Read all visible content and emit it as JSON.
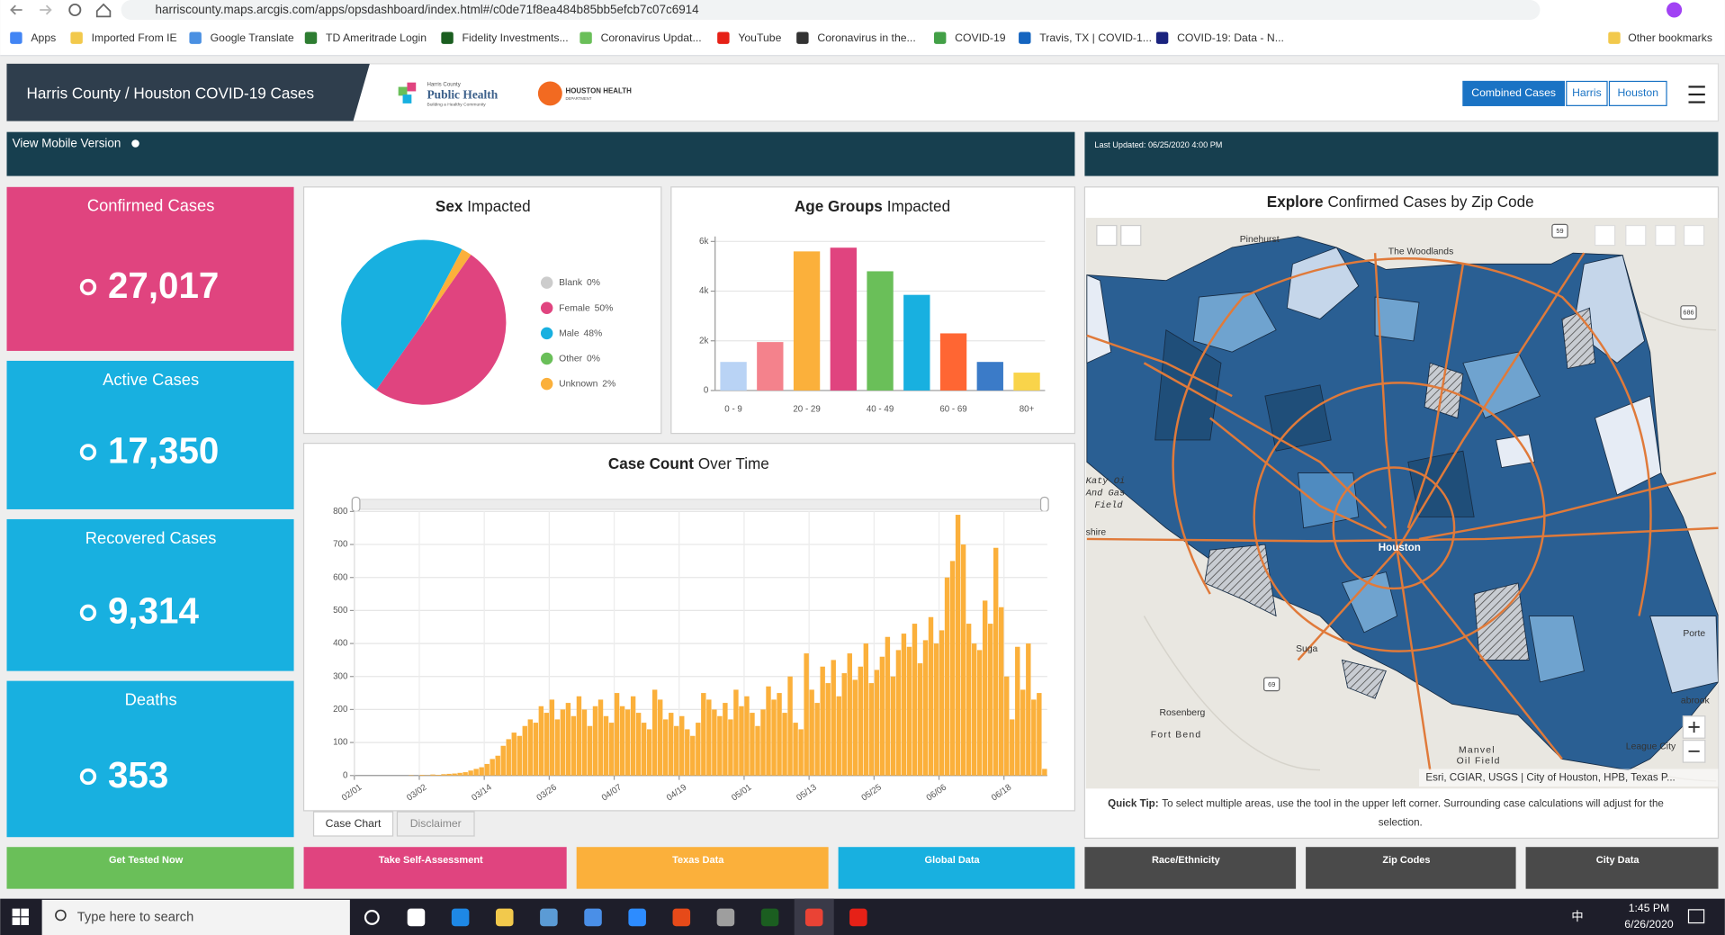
{
  "browser": {
    "url": "harriscounty.maps.arcgis.com/apps/opsdashboard/index.html#/c0de71f8ea484b85bb5efcb7c07c6914",
    "bookmarks": [
      "Apps",
      "Imported From IE",
      "Google Translate",
      "TD Ameritrade Login",
      "Fidelity Investments...",
      "Coronavirus Updat...",
      "YouTube",
      "Coronavirus in the...",
      "COVID-19",
      "Travis, TX | COVID-1...",
      "COVID-19: Data - N..."
    ],
    "other_bookmarks": "Other bookmarks"
  },
  "header": {
    "title": "Harris County / Houston COVID-19 Cases",
    "logo1_small": "Harris County",
    "logo1": "Public Health",
    "logo1_tag": "Building a Healthy Community",
    "logo2": "HOUSTON HEALTH",
    "logo2_tag": "DEPARTMENT",
    "tabs": [
      "Combined Cases",
      "Harris",
      "Houston"
    ]
  },
  "banner": {
    "mobile": "View Mobile Version",
    "updated": "Last Updated:  06/25/2020 4:00 PM"
  },
  "kpis": [
    {
      "label": "Confirmed Cases",
      "value": "27,017"
    },
    {
      "label": "Active Cases",
      "value": "17,350"
    },
    {
      "label": "Recovered Cases",
      "value": "9,314"
    },
    {
      "label": "Deaths",
      "value": "353"
    }
  ],
  "chart_data": [
    {
      "type": "pie",
      "title": [
        "Sex",
        "Impacted"
      ],
      "categories": [
        "Blank",
        "Female",
        "Male",
        "Other",
        "Unknown"
      ],
      "values": [
        0,
        50,
        48,
        0,
        2
      ],
      "value_labels": [
        "0%",
        "50%",
        "48%",
        "0%",
        "2%"
      ],
      "colors": [
        "#cccccc",
        "#e0447f",
        "#18b0e0",
        "#6abf59",
        "#fbb03b"
      ],
      "legend": "right"
    },
    {
      "type": "bar",
      "title": [
        "Age Groups",
        "Impacted"
      ],
      "categories": [
        "0 - 9",
        null,
        "20 - 29",
        null,
        "40 - 49",
        null,
        "60 - 69",
        null,
        "80+"
      ],
      "values": [
        1150,
        1950,
        5600,
        5750,
        4800,
        3850,
        2300,
        1150,
        720
      ],
      "colors": [
        "#b9d3f5",
        "#f4828c",
        "#fbb03b",
        "#e0447f",
        "#6abf59",
        "#18b0e0",
        "#ff6633",
        "#3b7bc8",
        "#f9d44a"
      ],
      "ylim": [
        0,
        6200
      ],
      "yticks": [
        0,
        {
          "value": 2000,
          "label": "2k"
        },
        {
          "value": 4000,
          "label": "4k"
        },
        {
          "value": 6000,
          "label": "6k"
        }
      ],
      "grid": true
    },
    {
      "type": "bar",
      "title": [
        "Case Count",
        "Over Time"
      ],
      "values": [
        0,
        0,
        0,
        0,
        0,
        0,
        0,
        0,
        0,
        0,
        1,
        0,
        2,
        1,
        3,
        2,
        4,
        5,
        6,
        8,
        10,
        15,
        20,
        25,
        35,
        50,
        60,
        90,
        110,
        130,
        120,
        150,
        170,
        160,
        210,
        190,
        230,
        170,
        200,
        220,
        180,
        240,
        200,
        150,
        210,
        230,
        180,
        160,
        250,
        210,
        200,
        240,
        190,
        160,
        140,
        260,
        230,
        170,
        190,
        150,
        180,
        140,
        120,
        160,
        250,
        230,
        200,
        180,
        220,
        170,
        260,
        210,
        240,
        190,
        150,
        200,
        270,
        230,
        250,
        190,
        300,
        160,
        140,
        370,
        260,
        220,
        330,
        280,
        350,
        240,
        310,
        370,
        290,
        330,
        400,
        280,
        320,
        360,
        420,
        300,
        380,
        430,
        390,
        460,
        340,
        410,
        480,
        400,
        440,
        600,
        650,
        790,
        700,
        460,
        400,
        380,
        530,
        460,
        690,
        510,
        300,
        170,
        390,
        260,
        400,
        230,
        250,
        20
      ],
      "color": "#fbb03b",
      "xlim": [
        0,
        128
      ],
      "xticks": [
        {
          "value": 0,
          "label": "02/01"
        },
        {
          "value": 12,
          "label": "03/02"
        },
        {
          "value": 24,
          "label": "03/14"
        },
        {
          "value": 36,
          "label": "03/26"
        },
        {
          "value": 48,
          "label": "04/07"
        },
        {
          "value": 60,
          "label": "04/19"
        },
        {
          "value": 72,
          "label": "05/01"
        },
        {
          "value": 84,
          "label": "05/13"
        },
        {
          "value": 96,
          "label": "05/25"
        },
        {
          "value": 108,
          "label": "06/06"
        },
        {
          "value": 120,
          "label": "06/18"
        }
      ],
      "ylim": [
        0,
        800
      ],
      "yticks": [
        0,
        100,
        200,
        300,
        400,
        500,
        600,
        700,
        800
      ],
      "grid": true,
      "tabs": [
        "Case Chart",
        "Disclaimer"
      ]
    }
  ],
  "map": {
    "title": [
      "Explore",
      "Confirmed Cases by Zip Code"
    ],
    "places": [
      "Pinehurst",
      "The Woodlands",
      "Houston",
      "Rosenberg",
      "Fort Bend",
      "Manvel",
      "Oil Field",
      "League City",
      "Katy Oi",
      "And Gas",
      "Field",
      "shire",
      "Porte",
      "abrook",
      "Suga"
    ],
    "shields": [
      "59",
      "686",
      "69"
    ],
    "attribution": "Esri, CGIAR, USGS | City of Houston, HPB, Texas P...",
    "tip_bold": "Quick Tip:",
    "tip": "To select multiple areas, use the tool in the upper left corner. Surrounding case calculations will adjust for the",
    "tip2": "selection."
  },
  "buttons": [
    "Get Tested Now",
    "Take Self-Assessment",
    "Texas Data",
    "Global Data",
    "Race/Ethnicity",
    "Zip Codes",
    "City Data"
  ],
  "taskbar": {
    "search": "Type here to search",
    "ime": "中",
    "time": "1:45 PM",
    "date": "6/26/2020"
  }
}
